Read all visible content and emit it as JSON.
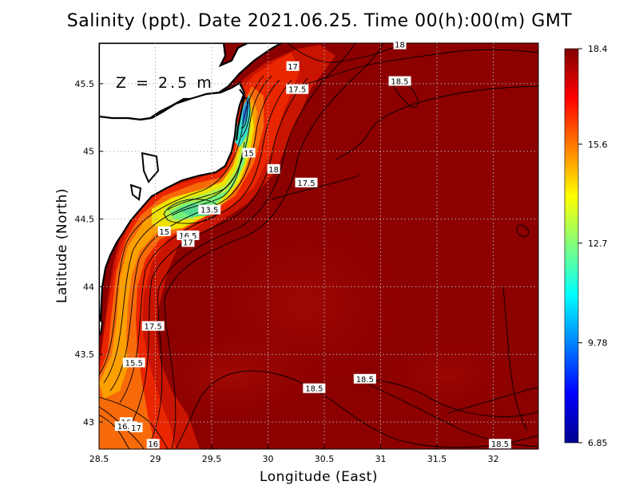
{
  "title": "Salinity (ppt). Date 2021.06.25. Time 00(h):00(m) GMT",
  "depth_label": "Z = 2.5 m",
  "axes": {
    "xlabel": "Longitude (East)",
    "ylabel": "Latitude (North)",
    "x_ticks": [
      "28.5",
      "29",
      "29.5",
      "30",
      "30.5",
      "31",
      "31.5",
      "32"
    ],
    "y_ticks": [
      "45.5",
      "45",
      "44.5",
      "44",
      "43.5",
      "43"
    ],
    "xlim": [
      28.5,
      32.4
    ],
    "ylim": [
      42.8,
      45.8
    ]
  },
  "colorbar": {
    "labels": [
      "18.4",
      "15.6",
      "12.7",
      "9.78",
      "6.85"
    ],
    "min": 6.85,
    "max": 18.4,
    "colors": [
      "#00008f",
      "#0000ff",
      "#007fff",
      "#00ffff",
      "#7fff7f",
      "#ffff00",
      "#ff7f00",
      "#ff0000",
      "#7f0000"
    ]
  },
  "contour_labels": [
    {
      "text": "17",
      "lon": 30.22,
      "lat": 45.63
    },
    {
      "text": "18",
      "lon": 31.17,
      "lat": 45.79
    },
    {
      "text": "18.5",
      "lon": 31.17,
      "lat": 45.52
    },
    {
      "text": "17.5",
      "lon": 30.26,
      "lat": 45.46
    },
    {
      "text": "15",
      "lon": 29.83,
      "lat": 44.99
    },
    {
      "text": "18",
      "lon": 30.05,
      "lat": 44.87
    },
    {
      "text": "17.5",
      "lon": 30.34,
      "lat": 44.77
    },
    {
      "text": "13.5",
      "lon": 29.48,
      "lat": 44.57
    },
    {
      "text": "15",
      "lon": 29.08,
      "lat": 44.41
    },
    {
      "text": "16.5",
      "lon": 29.29,
      "lat": 44.38
    },
    {
      "text": "17",
      "lon": 29.29,
      "lat": 44.33
    },
    {
      "text": "17.5",
      "lon": 28.98,
      "lat": 43.71
    },
    {
      "text": "15.5",
      "lon": 28.81,
      "lat": 43.44
    },
    {
      "text": "18.5",
      "lon": 30.86,
      "lat": 43.32
    },
    {
      "text": "18.5",
      "lon": 30.41,
      "lat": 43.25
    },
    {
      "text": "16",
      "lon": 28.74,
      "lat": 43.0
    },
    {
      "text": "16.5",
      "lon": 28.74,
      "lat": 42.97
    },
    {
      "text": "17",
      "lon": 28.83,
      "lat": 42.96
    },
    {
      "text": "16",
      "lon": 28.98,
      "lat": 42.84
    },
    {
      "text": "18.5",
      "lon": 32.06,
      "lat": 42.84
    }
  ]
}
